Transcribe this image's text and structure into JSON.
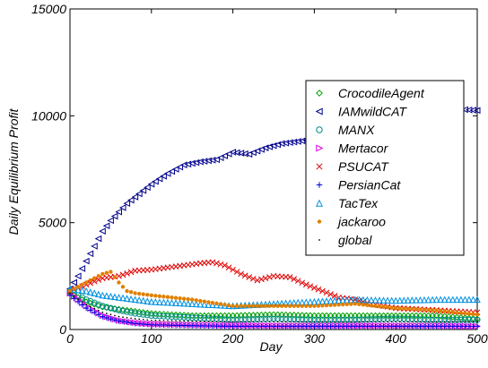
{
  "chart_data": {
    "type": "scatter",
    "title": "",
    "xlabel": "Day",
    "ylabel": "Daily Equilibrium Profit",
    "xlim": [
      0,
      500
    ],
    "ylim": [
      0,
      15000
    ],
    "xticks": [
      "0",
      "100",
      "200",
      "300",
      "400",
      "500"
    ],
    "yticks": [
      "0",
      "5000",
      "10000",
      "15000"
    ],
    "grid": false,
    "legend_position": "center-right",
    "series": [
      {
        "name": "CrocodileAgent",
        "marker": "diamond-open",
        "color": "#00a000",
        "x": [
          0,
          20,
          40,
          60,
          80,
          100,
          150,
          200,
          250,
          300,
          350,
          400,
          450,
          500
        ],
        "y": [
          1700,
          1300,
          1050,
          950,
          850,
          750,
          650,
          650,
          700,
          650,
          650,
          650,
          650,
          500
        ]
      },
      {
        "name": "IAMwildCAT",
        "marker": "triangle-left-open",
        "color": "#00008b",
        "x": [
          0,
          10,
          20,
          30,
          40,
          50,
          60,
          70,
          80,
          90,
          100,
          120,
          140,
          160,
          180,
          200,
          220,
          240,
          260,
          280,
          300,
          320,
          340,
          360,
          380,
          400,
          420,
          440,
          460,
          480,
          500
        ],
        "y": [
          1900,
          2500,
          3200,
          3900,
          4600,
          5100,
          5500,
          5900,
          6200,
          6500,
          6800,
          7300,
          7700,
          7850,
          7950,
          8300,
          8200,
          8500,
          8700,
          8800,
          8900,
          9200,
          9600,
          9500,
          9700,
          9800,
          9900,
          10100,
          10300,
          10300,
          10250
        ]
      },
      {
        "name": "MANX",
        "marker": "circle-open",
        "color": "#008b8b",
        "x": [
          0,
          20,
          40,
          60,
          80,
          100,
          150,
          200,
          250,
          300,
          350,
          400,
          450,
          500
        ],
        "y": [
          1800,
          1400,
          1100,
          900,
          750,
          650,
          550,
          450,
          500,
          450,
          450,
          500,
          450,
          450
        ]
      },
      {
        "name": "Mertacor",
        "marker": "triangle-right-open",
        "color": "#e000e0",
        "x": [
          0,
          20,
          40,
          60,
          80,
          100,
          150,
          200,
          250,
          300,
          350,
          400,
          450,
          500
        ],
        "y": [
          1700,
          1100,
          650,
          420,
          320,
          260,
          220,
          200,
          180,
          180,
          180,
          180,
          180,
          150
        ]
      },
      {
        "name": "PSUCAT",
        "marker": "x",
        "color": "#e00000",
        "x": [
          0,
          20,
          40,
          60,
          80,
          100,
          120,
          140,
          160,
          175,
          190,
          210,
          230,
          250,
          270,
          290,
          310,
          330,
          350,
          370,
          400,
          450,
          500
        ],
        "y": [
          1800,
          2100,
          2400,
          2500,
          2750,
          2800,
          2900,
          3000,
          3100,
          3150,
          3000,
          2600,
          2300,
          2500,
          2450,
          2100,
          1800,
          1500,
          1400,
          1200,
          1000,
          900,
          800
        ]
      },
      {
        "name": "PersianCat",
        "marker": "plus",
        "color": "#0000e0",
        "x": [
          0,
          20,
          40,
          60,
          80,
          100,
          150,
          200,
          250,
          300,
          350,
          400,
          450,
          500
        ],
        "y": [
          1600,
          1000,
          600,
          400,
          280,
          220,
          180,
          150,
          150,
          150,
          150,
          150,
          150,
          150
        ]
      },
      {
        "name": "TacTex",
        "marker": "triangle-up-open",
        "color": "#0090e0",
        "x": [
          0,
          20,
          40,
          60,
          80,
          100,
          150,
          200,
          250,
          300,
          350,
          400,
          450,
          500
        ],
        "y": [
          1900,
          1800,
          1600,
          1500,
          1400,
          1300,
          1200,
          1100,
          1200,
          1300,
          1400,
          1350,
          1400,
          1400
        ]
      },
      {
        "name": "jackaroo",
        "marker": "dot-filled",
        "color": "#e08000",
        "x": [
          0,
          20,
          40,
          50,
          60,
          70,
          80,
          100,
          150,
          200,
          250,
          300,
          350,
          400,
          450,
          500
        ],
        "y": [
          1800,
          2200,
          2600,
          2700,
          2200,
          1800,
          1700,
          1600,
          1400,
          1100,
          1100,
          1100,
          1200,
          1000,
          900,
          700
        ]
      },
      {
        "name": "global",
        "marker": "point",
        "color": "#000000",
        "x": [
          0,
          20,
          40,
          60,
          80,
          100,
          150,
          200,
          250,
          300,
          350,
          400,
          450,
          500
        ],
        "y": [
          1700,
          1150,
          800,
          600,
          500,
          420,
          380,
          360,
          360,
          360,
          360,
          360,
          360,
          360
        ]
      }
    ]
  }
}
